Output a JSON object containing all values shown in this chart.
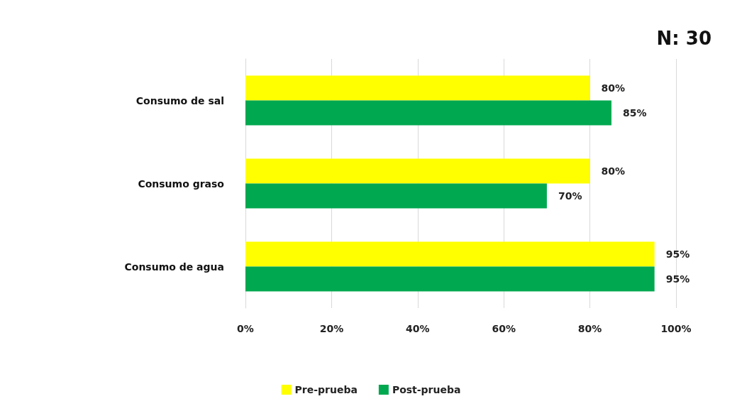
{
  "chart_data": {
    "type": "bar",
    "orientation": "horizontal",
    "title": "N: 30",
    "categories": [
      "Consumo de sal",
      "Consumo graso",
      "Consumo de agua"
    ],
    "series": [
      {
        "name": "Pre-prueba",
        "color": "#ffff00",
        "values": [
          80,
          80,
          95
        ],
        "value_labels": [
          "80%",
          "80%",
          "95%"
        ]
      },
      {
        "name": "Post-prueba",
        "color": "#00a84f",
        "values": [
          85,
          70,
          95
        ],
        "value_labels": [
          "85%",
          "70%",
          "95%"
        ]
      }
    ],
    "xlim": [
      0,
      100
    ],
    "xticks": [
      {
        "value": 0,
        "label": "0%"
      },
      {
        "value": 20,
        "label": "20%"
      },
      {
        "value": 40,
        "label": "40%"
      },
      {
        "value": 60,
        "label": "60%"
      },
      {
        "value": 80,
        "label": "80%"
      },
      {
        "value": 100,
        "label": "100%"
      }
    ],
    "grid": "x",
    "legend": "bottom"
  }
}
